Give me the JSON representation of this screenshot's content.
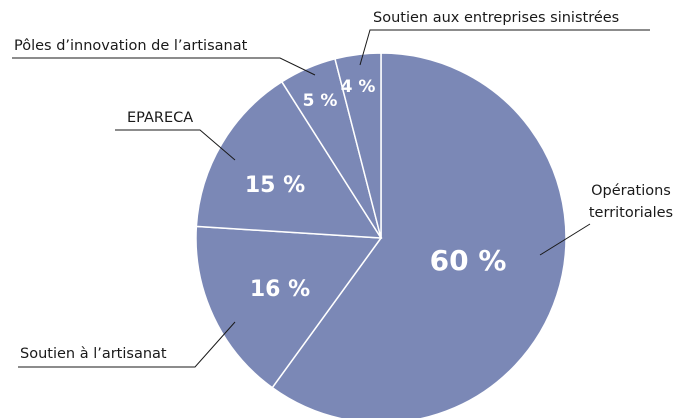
{
  "chart_data": {
    "type": "pie",
    "categories": [
      "Opérations territoriales",
      "Soutien à l’artisanat",
      "EPARECA",
      "Pôles d’innovation de l’artisanat",
      "Soutien aux entreprises sinistrées"
    ],
    "values": [
      60,
      16,
      15,
      5,
      4
    ],
    "value_labels": [
      "60 %",
      "16 %",
      "15 %",
      "5 %",
      "4 %"
    ],
    "color": "#7b88b6"
  }
}
